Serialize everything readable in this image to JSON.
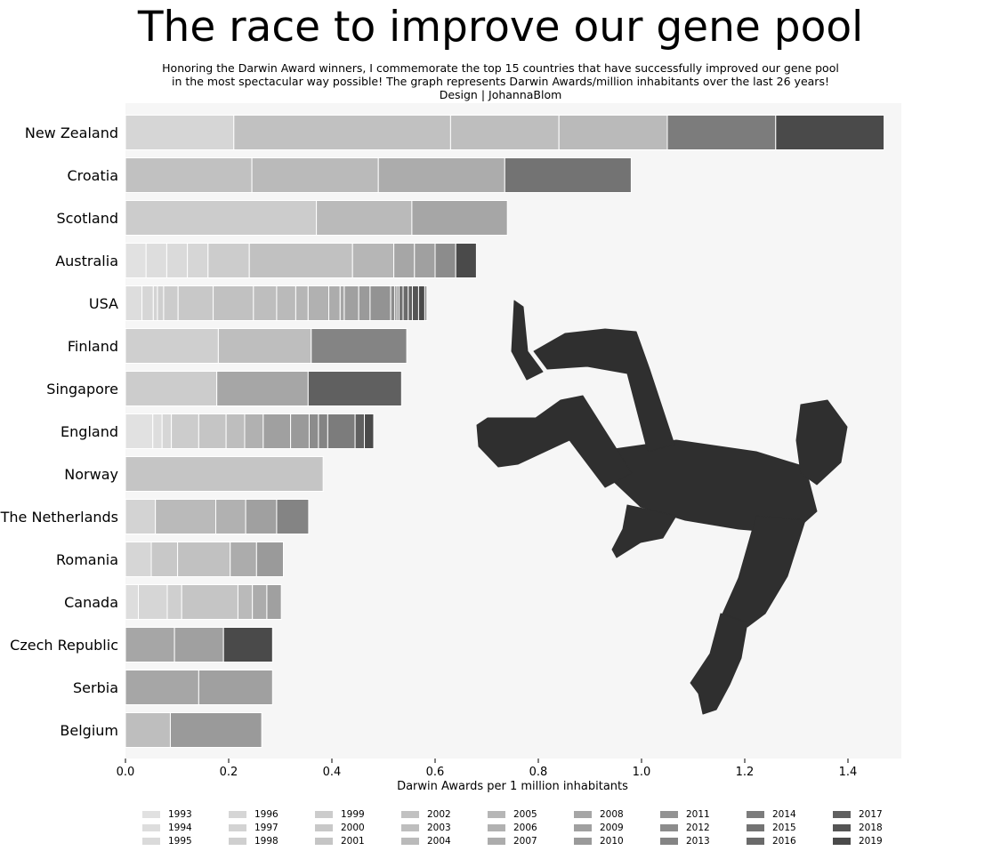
{
  "chart_data": {
    "type": "bar",
    "stacked": true,
    "orientation": "horizontal",
    "title": "The race to improve our gene pool",
    "subtitle_lines": [
      "Honoring the Darwin Award winners, I commemorate the top 15 countries that have successfully improved our gene pool",
      "in the most spectacular way possible! The graph represents Darwin Awards/million inhabitants over the last 26 years!",
      "Design | JohannaBlom"
    ],
    "xlabel": "Darwin Awards per 1 million inhabitants",
    "ylabel": "",
    "xlim": [
      0,
      1.5
    ],
    "xticks": [
      0.0,
      0.2,
      0.4,
      0.6,
      0.8,
      1.0,
      1.2,
      1.4
    ],
    "xtick_labels": [
      "0.0",
      "0.2",
      "0.4",
      "0.6",
      "0.8",
      "1.0",
      "1.2",
      "1.4"
    ],
    "grid": false,
    "legend_position": "bottom",
    "background_color": "#f6f6f6",
    "illustration": "falling-person-silhouette",
    "years": [
      "1993",
      "1994",
      "1995",
      "1996",
      "1997",
      "1998",
      "1999",
      "2000",
      "2001",
      "2002",
      "2003",
      "2004",
      "2005",
      "2006",
      "2007",
      "2008",
      "2009",
      "2010",
      "2011",
      "2012",
      "2013",
      "2014",
      "2015",
      "2016",
      "2017",
      "2018",
      "2019"
    ],
    "colors": [
      "#e1e1e1",
      "#dddddd",
      "#dadada",
      "#d6d6d6",
      "#d3d3d3",
      "#cfcfcf",
      "#cccccc",
      "#c8c8c8",
      "#c5c5c5",
      "#c1c1c1",
      "#bebebe",
      "#bababa",
      "#b6b6b6",
      "#b1b1b1",
      "#acacac",
      "#a6a6a6",
      "#a0a0a0",
      "#9a9a9a",
      "#939393",
      "#8c8c8c",
      "#848484",
      "#7c7c7c",
      "#737373",
      "#6a6a6a",
      "#606060",
      "#555555",
      "#4a4a4a"
    ],
    "countries": [
      {
        "name": "New Zealand",
        "segments": [
          [
            3,
            0.21
          ],
          [
            9,
            0.42
          ],
          [
            10,
            0.21
          ],
          [
            11,
            0.21
          ],
          [
            21,
            0.21
          ],
          [
            26,
            0.21
          ]
        ]
      },
      {
        "name": "Croatia",
        "segments": [
          [
            9,
            0.245
          ],
          [
            11,
            0.245
          ],
          [
            14,
            0.245
          ],
          [
            22,
            0.245
          ]
        ]
      },
      {
        "name": "Scotland",
        "segments": [
          [
            6,
            0.37
          ],
          [
            11,
            0.185
          ],
          [
            15,
            0.185
          ]
        ]
      },
      {
        "name": "Australia",
        "segments": [
          [
            0,
            0.04
          ],
          [
            1,
            0.04
          ],
          [
            2,
            0.04
          ],
          [
            3,
            0.04
          ],
          [
            6,
            0.08
          ],
          [
            9,
            0.2
          ],
          [
            12,
            0.08
          ],
          [
            15,
            0.04
          ],
          [
            16,
            0.04
          ],
          [
            19,
            0.04
          ],
          [
            26,
            0.04
          ]
        ]
      },
      {
        "name": "USA",
        "segments": [
          [
            1,
            0.032
          ],
          [
            3,
            0.022
          ],
          [
            4,
            0.008
          ],
          [
            5,
            0.012
          ],
          [
            6,
            0.028
          ],
          [
            7,
            0.068
          ],
          [
            9,
            0.078
          ],
          [
            10,
            0.045
          ],
          [
            11,
            0.037
          ],
          [
            12,
            0.024
          ],
          [
            13,
            0.04
          ],
          [
            14,
            0.022
          ],
          [
            15,
            0.008
          ],
          [
            16,
            0.028
          ],
          [
            17,
            0.022
          ],
          [
            18,
            0.04
          ],
          [
            19,
            0.008
          ],
          [
            20,
            0.004
          ],
          [
            21,
            0.004
          ],
          [
            22,
            0.008
          ],
          [
            23,
            0.01
          ],
          [
            24,
            0.008
          ],
          [
            25,
            0.012
          ],
          [
            26,
            0.012
          ],
          [
            20,
            0.004
          ]
        ]
      },
      {
        "name": "Finland",
        "segments": [
          [
            5,
            0.18
          ],
          [
            10,
            0.18
          ],
          [
            20,
            0.185
          ]
        ]
      },
      {
        "name": "Singapore",
        "segments": [
          [
            6,
            0.177
          ],
          [
            15,
            0.177
          ],
          [
            24,
            0.181
          ]
        ]
      },
      {
        "name": "England",
        "segments": [
          [
            0,
            0.053
          ],
          [
            1,
            0.018
          ],
          [
            3,
            0.018
          ],
          [
            6,
            0.053
          ],
          [
            8,
            0.053
          ],
          [
            10,
            0.036
          ],
          [
            13,
            0.036
          ],
          [
            16,
            0.053
          ],
          [
            17,
            0.036
          ],
          [
            19,
            0.018
          ],
          [
            20,
            0.018
          ],
          [
            21,
            0.053
          ],
          [
            24,
            0.018
          ],
          [
            26,
            0.018
          ]
        ]
      },
      {
        "name": "Norway",
        "segments": [
          [
            8,
            0.383
          ]
        ]
      },
      {
        "name": "The Netherlands",
        "segments": [
          [
            4,
            0.058
          ],
          [
            11,
            0.117
          ],
          [
            13,
            0.058
          ],
          [
            16,
            0.06
          ],
          [
            20,
            0.062
          ]
        ]
      },
      {
        "name": "Romania",
        "segments": [
          [
            3,
            0.05
          ],
          [
            7,
            0.051
          ],
          [
            9,
            0.102
          ],
          [
            14,
            0.051
          ],
          [
            17,
            0.052
          ]
        ]
      },
      {
        "name": "Canada",
        "segments": [
          [
            1,
            0.025
          ],
          [
            3,
            0.056
          ],
          [
            5,
            0.028
          ],
          [
            8,
            0.109
          ],
          [
            11,
            0.028
          ],
          [
            14,
            0.028
          ],
          [
            16,
            0.028
          ]
        ]
      },
      {
        "name": "Czech Republic",
        "segments": [
          [
            15,
            0.095
          ],
          [
            16,
            0.095
          ],
          [
            26,
            0.095
          ]
        ]
      },
      {
        "name": "Serbia",
        "segments": [
          [
            15,
            0.142
          ],
          [
            16,
            0.143
          ]
        ]
      },
      {
        "name": "Belgium",
        "segments": [
          [
            10,
            0.087
          ],
          [
            17,
            0.177
          ]
        ]
      }
    ]
  }
}
